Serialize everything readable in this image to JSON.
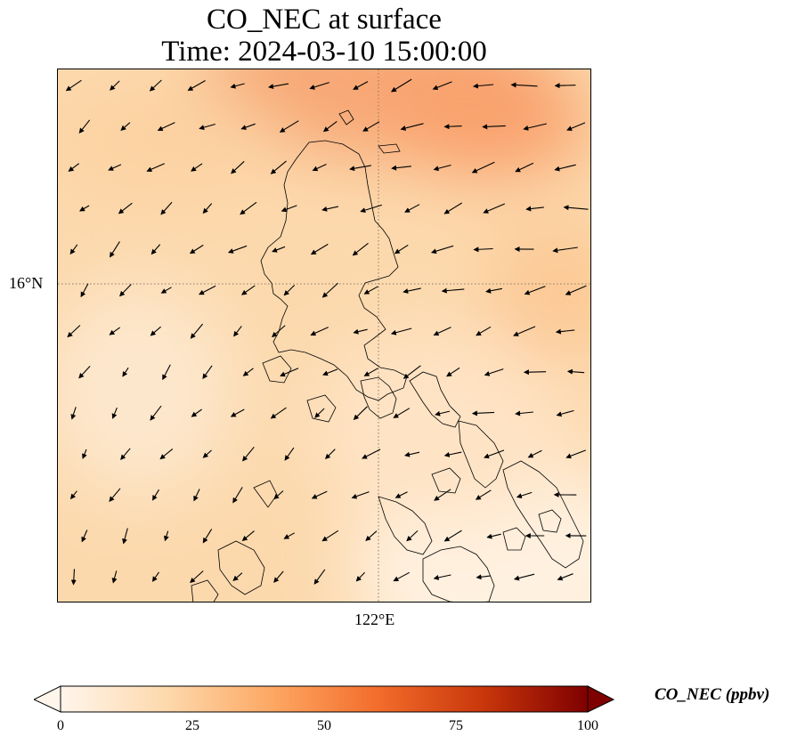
{
  "title": {
    "line1": "CO_NEC at surface",
    "line2": "Time: 2024-03-10 15:00:00"
  },
  "map": {
    "lat_label": "16°N",
    "lon_label": "122°E",
    "gridline_style": "dotted",
    "gridline_color": "#8a7a6a",
    "coastline_color": "#000000",
    "vector_color": "#000000",
    "background_color": "#fcdcb0",
    "wind_vectors": "present",
    "coastlines": "present"
  },
  "colorbar": {
    "label": "CO_NEC (ppbv)",
    "colormap": "Oranges",
    "colors": [
      "#fff5eb",
      "#fdd9ad",
      "#fda864",
      "#f36d2b",
      "#c9370b",
      "#7f0000"
    ],
    "ticks": [
      "0",
      "25",
      "50",
      "75",
      "100"
    ],
    "range": [
      0,
      100
    ],
    "extend": "both"
  }
}
